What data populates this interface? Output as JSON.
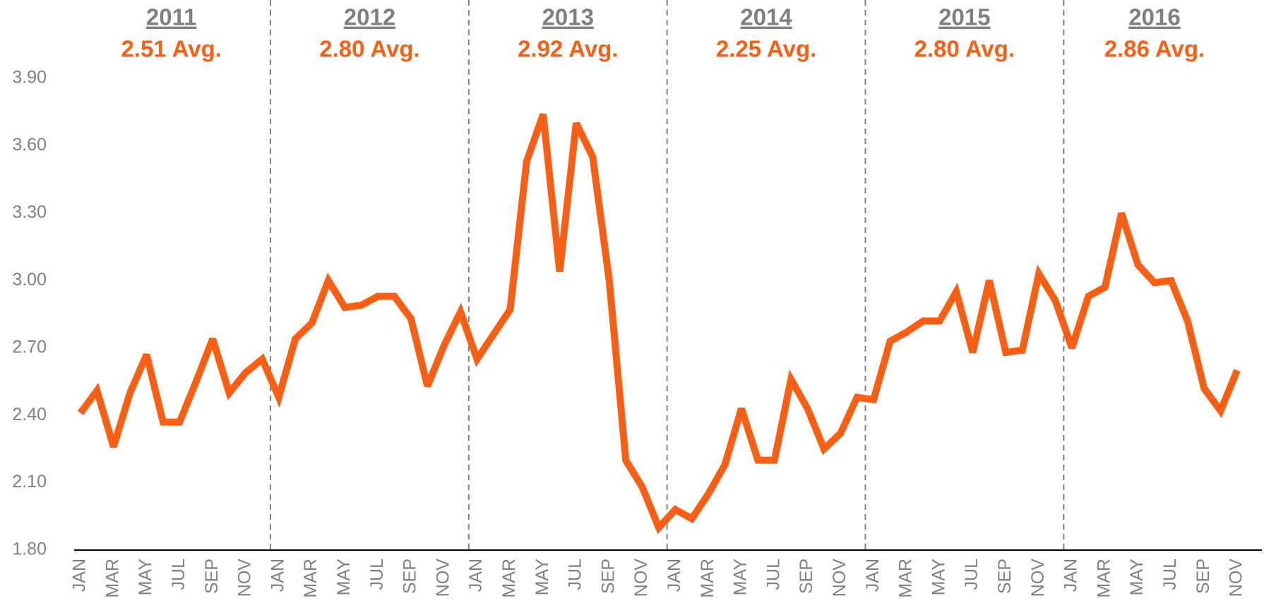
{
  "chart_data": {
    "type": "line",
    "color": "#f85f14",
    "categories": [
      "JAN",
      null,
      "MAR",
      null,
      "MAY",
      null,
      "JUL",
      null,
      "SEP",
      null,
      "NOV",
      null,
      "JAN",
      null,
      "MAR",
      null,
      "MAY",
      null,
      "JUL",
      null,
      "SEP",
      null,
      "NOV",
      null,
      "JAN",
      null,
      "MAR",
      null,
      "MAY",
      null,
      "JUL",
      null,
      "SEP",
      null,
      "NOV",
      null,
      "JAN",
      null,
      "MAR",
      null,
      "MAY",
      null,
      "JUL",
      null,
      "SEP",
      null,
      "NOV",
      null,
      "JAN",
      null,
      "MAR",
      null,
      "MAY",
      null,
      "JUL",
      null,
      "SEP",
      null,
      "NOV",
      null,
      "JAN",
      null,
      "MAR",
      null,
      "MAY",
      null,
      "JUL",
      null,
      "SEP",
      null,
      "NOV"
    ],
    "values": [
      2.41,
      2.51,
      2.26,
      2.5,
      2.67,
      2.37,
      2.37,
      2.55,
      2.74,
      2.5,
      2.59,
      2.65,
      2.48,
      2.74,
      2.81,
      3.0,
      2.88,
      2.89,
      2.93,
      2.93,
      2.83,
      2.53,
      2.71,
      2.86,
      2.65,
      2.76,
      2.87,
      3.53,
      3.74,
      3.04,
      3.7,
      3.55,
      3.0,
      2.2,
      2.08,
      1.9,
      1.98,
      1.94,
      2.05,
      2.18,
      2.43,
      2.2,
      2.2,
      2.56,
      2.43,
      2.25,
      2.32,
      2.48,
      2.47,
      2.73,
      2.77,
      2.82,
      2.82,
      2.95,
      2.68,
      3.0,
      2.68,
      2.69,
      3.03,
      2.91,
      2.7,
      2.93,
      2.97,
      3.3,
      3.07,
      2.99,
      3.0,
      2.82,
      2.52,
      2.42,
      2.6
    ],
    "ylim": [
      1.8,
      3.9
    ],
    "yticks": [
      {
        "value": 1.8,
        "label": "1.80"
      },
      {
        "value": 2.1,
        "label": "2.10"
      },
      {
        "value": 2.4,
        "label": "2.40"
      },
      {
        "value": 2.7,
        "label": "2.70"
      },
      {
        "value": 3.0,
        "label": "3.00"
      },
      {
        "value": 3.3,
        "label": "3.30"
      },
      {
        "value": 3.6,
        "label": "3.60"
      },
      {
        "value": 3.9,
        "label": "3.90"
      }
    ],
    "grid": false,
    "annotations": [
      {
        "title": "2011",
        "text": "2.51 Avg."
      },
      {
        "title": "2012",
        "text": "2.80 Avg."
      },
      {
        "title": "2013",
        "text": "2.92 Avg."
      },
      {
        "title": "2014",
        "text": "2.25 Avg."
      },
      {
        "title": "2015",
        "text": "2.80 Avg."
      },
      {
        "title": "2016",
        "text": "2.86 Avg."
      }
    ]
  }
}
